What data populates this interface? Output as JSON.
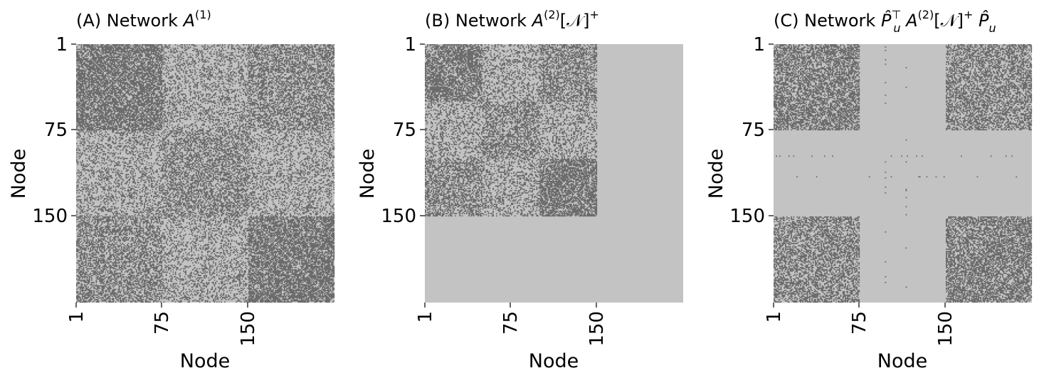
{
  "colors": {
    "background": "#c3c3c3",
    "edge": "#6b6b6b",
    "page": "#ffffff"
  },
  "chart_data": [
    {
      "type": "heatmap",
      "title": {
        "prefix": "(A) Network ",
        "symbol": "A",
        "superscript": "(1)",
        "suffix": "",
        "trailing_sup": ""
      },
      "xlabel": "Node",
      "ylabel": "Node",
      "x_ticks": [
        "1",
        "75",
        "150"
      ],
      "y_ticks": [
        "1",
        "75",
        "150"
      ],
      "n_nodes": 225,
      "communities": [
        {
          "start": 1,
          "end": 75
        },
        {
          "start": 76,
          "end": 150
        },
        {
          "start": 151,
          "end": 225
        }
      ],
      "edge_probability": [
        [
          0.7,
          0.3,
          0.5
        ],
        [
          0.3,
          0.5,
          0.3
        ],
        [
          0.5,
          0.3,
          0.7
        ]
      ],
      "unmatched_nodes": []
    },
    {
      "type": "heatmap",
      "title": {
        "prefix": "(B) Network ",
        "symbol": "A",
        "superscript": "(2)",
        "suffix": "[𝒩]",
        "trailing_sup": "+"
      },
      "xlabel": "Node",
      "ylabel": "Node",
      "x_ticks": [
        "1",
        "75",
        "150"
      ],
      "y_ticks": [
        "1",
        "75",
        "150"
      ],
      "n_nodes": 225,
      "communities": [
        {
          "start": 1,
          "end": 50
        },
        {
          "start": 51,
          "end": 100
        },
        {
          "start": 101,
          "end": 150
        }
      ],
      "edge_probability": [
        [
          0.7,
          0.3,
          0.5
        ],
        [
          0.3,
          0.5,
          0.3
        ],
        [
          0.5,
          0.3,
          0.7
        ]
      ],
      "padding": {
        "start": 151,
        "end": 225,
        "edge_probability": 0
      },
      "unmatched_nodes": []
    },
    {
      "type": "heatmap",
      "title": {
        "prefix": "(C) Network ",
        "symbol": "P̂",
        "subscript": "u",
        "superscript": "⊤",
        "middle": " A",
        "middle_sup": "(2)",
        "suffix": "[𝒩]",
        "trailing_sup": "+",
        "end_symbol": " P̂",
        "end_sub": "u"
      },
      "xlabel": "Node",
      "ylabel": "Node",
      "x_ticks": [
        "1",
        "75",
        "150"
      ],
      "y_ticks": [
        "1",
        "75",
        "150"
      ],
      "n_nodes": 225,
      "communities": [
        {
          "start": 1,
          "end": 75
        },
        {
          "start": 76,
          "end": 150
        },
        {
          "start": 151,
          "end": 225
        }
      ],
      "edge_probability": [
        [
          0.6,
          0.0,
          0.5
        ],
        [
          0.0,
          0.0,
          0.0
        ],
        [
          0.5,
          0.0,
          0.6
        ]
      ],
      "unmatched_nodes": [
        98,
        116
      ]
    }
  ]
}
